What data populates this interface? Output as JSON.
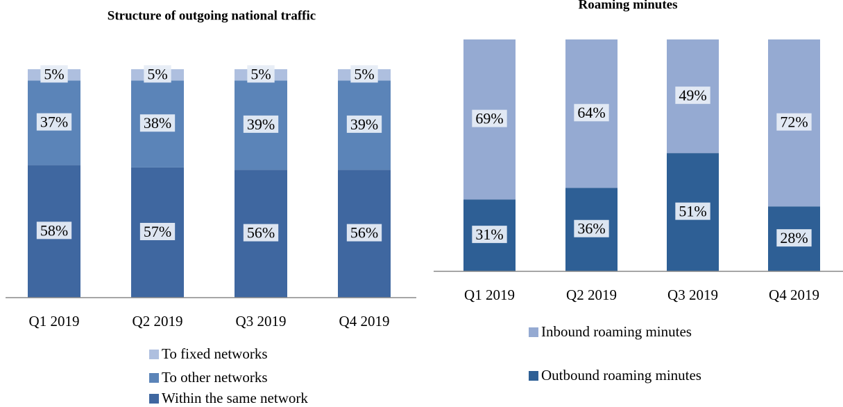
{
  "chart_data": [
    {
      "type": "stacked_bar",
      "title": "Structure of outgoing national traffic",
      "categories": [
        "Q1 2019",
        "Q2 2019",
        "Q3 2019",
        "Q4 2019"
      ],
      "series": [
        {
          "name": "To fixed networks",
          "color": "#aebfdf",
          "values": [
            5,
            5,
            5,
            5
          ],
          "value_labels": [
            "5%",
            "5%",
            "5%",
            "5%"
          ]
        },
        {
          "name": "To other networks",
          "color": "#5b84b8",
          "values": [
            37,
            38,
            39,
            39
          ],
          "value_labels": [
            "37%",
            "38%",
            "39%",
            "39%"
          ]
        },
        {
          "name": "Within the same network",
          "color": "#3f67a0",
          "values": [
            58,
            57,
            56,
            56
          ],
          "value_labels": [
            "58%",
            "57%",
            "56%",
            "56%"
          ]
        }
      ]
    },
    {
      "type": "stacked_bar",
      "title": "Roaming minutes",
      "categories": [
        "Q1 2019",
        "Q2 2019",
        "Q3 2019",
        "Q4 2019"
      ],
      "series": [
        {
          "name": "Inbound roaming minutes",
          "color": "#95aad2",
          "values": [
            69,
            64,
            49,
            72
          ],
          "value_labels": [
            "69%",
            "64%",
            "49%",
            "72%"
          ]
        },
        {
          "name": "Outbound roaming minutes",
          "color": "#2e5f95",
          "values": [
            31,
            36,
            51,
            28
          ],
          "value_labels": [
            "31%",
            "36%",
            "51%",
            "28%"
          ]
        }
      ]
    }
  ]
}
